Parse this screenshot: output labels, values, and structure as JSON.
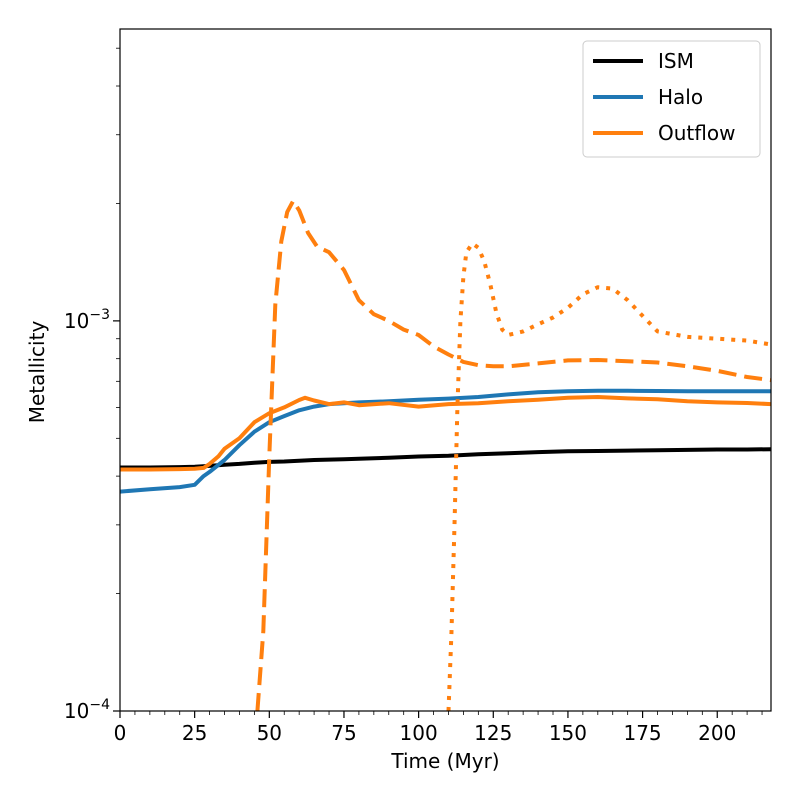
{
  "chart_data": {
    "type": "line",
    "xlabel": "Time (Myr)",
    "ylabel": "Metallicity",
    "xlim": [
      0,
      218
    ],
    "ylim": [
      0.0001,
      0.0056
    ],
    "yscale": "log",
    "grid": false,
    "legend_position": "top-right",
    "x_ticks": [
      0,
      25,
      50,
      75,
      100,
      125,
      150,
      175,
      200
    ],
    "x_tick_labels": [
      "0",
      "25",
      "50",
      "75",
      "100",
      "125",
      "150",
      "175",
      "200"
    ],
    "y_major_ticks": [
      0.0001,
      0.001
    ],
    "y_tick_labels": [
      {
        "base": "10",
        "exp": "−4"
      },
      {
        "base": "10",
        "exp": "−3"
      }
    ],
    "series": [
      {
        "name": "ISM",
        "color": "#000000",
        "dash": "solid",
        "x": [
          0,
          10,
          20,
          25,
          30,
          35,
          40,
          45,
          50,
          55,
          60,
          65,
          70,
          75,
          80,
          90,
          100,
          110,
          120,
          130,
          140,
          150,
          160,
          170,
          180,
          190,
          200,
          210,
          218
        ],
        "y": [
          0.000421,
          0.000421,
          0.000422,
          0.000423,
          0.000425,
          0.000428,
          0.00043,
          0.000433,
          0.000435,
          0.000436,
          0.000438,
          0.00044,
          0.000441,
          0.000442,
          0.000443,
          0.000446,
          0.000449,
          0.000451,
          0.000455,
          0.000458,
          0.000461,
          0.000463,
          0.000464,
          0.000465,
          0.000466,
          0.000467,
          0.000468,
          0.000468,
          0.000469
        ]
      },
      {
        "name": "Halo",
        "color": "#1f77b4",
        "dash": "solid",
        "x": [
          0,
          10,
          20,
          25,
          28,
          30,
          35,
          40,
          45,
          50,
          55,
          60,
          65,
          70,
          75,
          80,
          90,
          100,
          110,
          120,
          130,
          140,
          150,
          160,
          170,
          180,
          190,
          200,
          210,
          218
        ],
        "y": [
          0.000365,
          0.00037,
          0.000375,
          0.00038,
          0.0004,
          0.00041,
          0.00044,
          0.00048,
          0.00052,
          0.00055,
          0.00057,
          0.00059,
          0.000603,
          0.000612,
          0.000615,
          0.000618,
          0.000622,
          0.000628,
          0.000632,
          0.000638,
          0.000648,
          0.000656,
          0.00066,
          0.000662,
          0.000662,
          0.000661,
          0.00066,
          0.00066,
          0.00066,
          0.00066
        ]
      },
      {
        "name": "Outflow",
        "color": "#ff7f0e",
        "dash": "solid",
        "x": [
          0,
          10,
          20,
          25,
          28,
          30,
          33,
          35,
          40,
          45,
          50,
          55,
          60,
          62,
          65,
          70,
          75,
          80,
          90,
          100,
          110,
          120,
          130,
          140,
          150,
          160,
          170,
          180,
          190,
          200,
          210,
          218
        ],
        "y": [
          0.000416,
          0.000416,
          0.000417,
          0.000418,
          0.00042,
          0.00043,
          0.00045,
          0.00047,
          0.0005,
          0.00055,
          0.00058,
          0.0006,
          0.000627,
          0.000635,
          0.000625,
          0.000612,
          0.000618,
          0.000608,
          0.000615,
          0.000603,
          0.000612,
          0.000615,
          0.000622,
          0.000628,
          0.000635,
          0.000638,
          0.000633,
          0.00063,
          0.000622,
          0.000618,
          0.000616,
          0.000612
        ]
      },
      {
        "color": "#ff7f0e",
        "dash": "dashed",
        "x": [
          46,
          48,
          50,
          52,
          54,
          56,
          58,
          60,
          63,
          66,
          70,
          75,
          80,
          85,
          90,
          95,
          100,
          105,
          110,
          115,
          120,
          125,
          130,
          140,
          150,
          160,
          170,
          180,
          190,
          200,
          210,
          218
        ],
        "y": [
          0.0001,
          0.00016,
          0.00045,
          0.0011,
          0.0016,
          0.0019,
          0.00203,
          0.00192,
          0.00168,
          0.00155,
          0.0015,
          0.00135,
          0.00113,
          0.00104,
          0.001,
          0.00095,
          0.00092,
          0.00086,
          0.00082,
          0.000785,
          0.00077,
          0.000765,
          0.000765,
          0.000778,
          0.000792,
          0.000794,
          0.000788,
          0.000782,
          0.000765,
          0.000745,
          0.000718,
          0.000705
        ]
      },
      {
        "color": "#ff7f0e",
        "dash": "dotted",
        "x": [
          110,
          111,
          112,
          113,
          114,
          115,
          116,
          118,
          120,
          122,
          124,
          126,
          128,
          130,
          135,
          140,
          145,
          150,
          155,
          160,
          165,
          170,
          175,
          180,
          190,
          200,
          210,
          218
        ],
        "y": [
          0.0001,
          0.00016,
          0.0003,
          0.0006,
          0.001,
          0.0013,
          0.0015,
          0.00158,
          0.00154,
          0.00142,
          0.00124,
          0.00105,
          0.00095,
          0.00092,
          0.00094,
          0.00098,
          0.00102,
          0.00108,
          0.00117,
          0.00122,
          0.00121,
          0.00113,
          0.00103,
          0.00094,
          0.00091,
          0.0009,
          0.00089,
          0.00087
        ]
      }
    ]
  }
}
